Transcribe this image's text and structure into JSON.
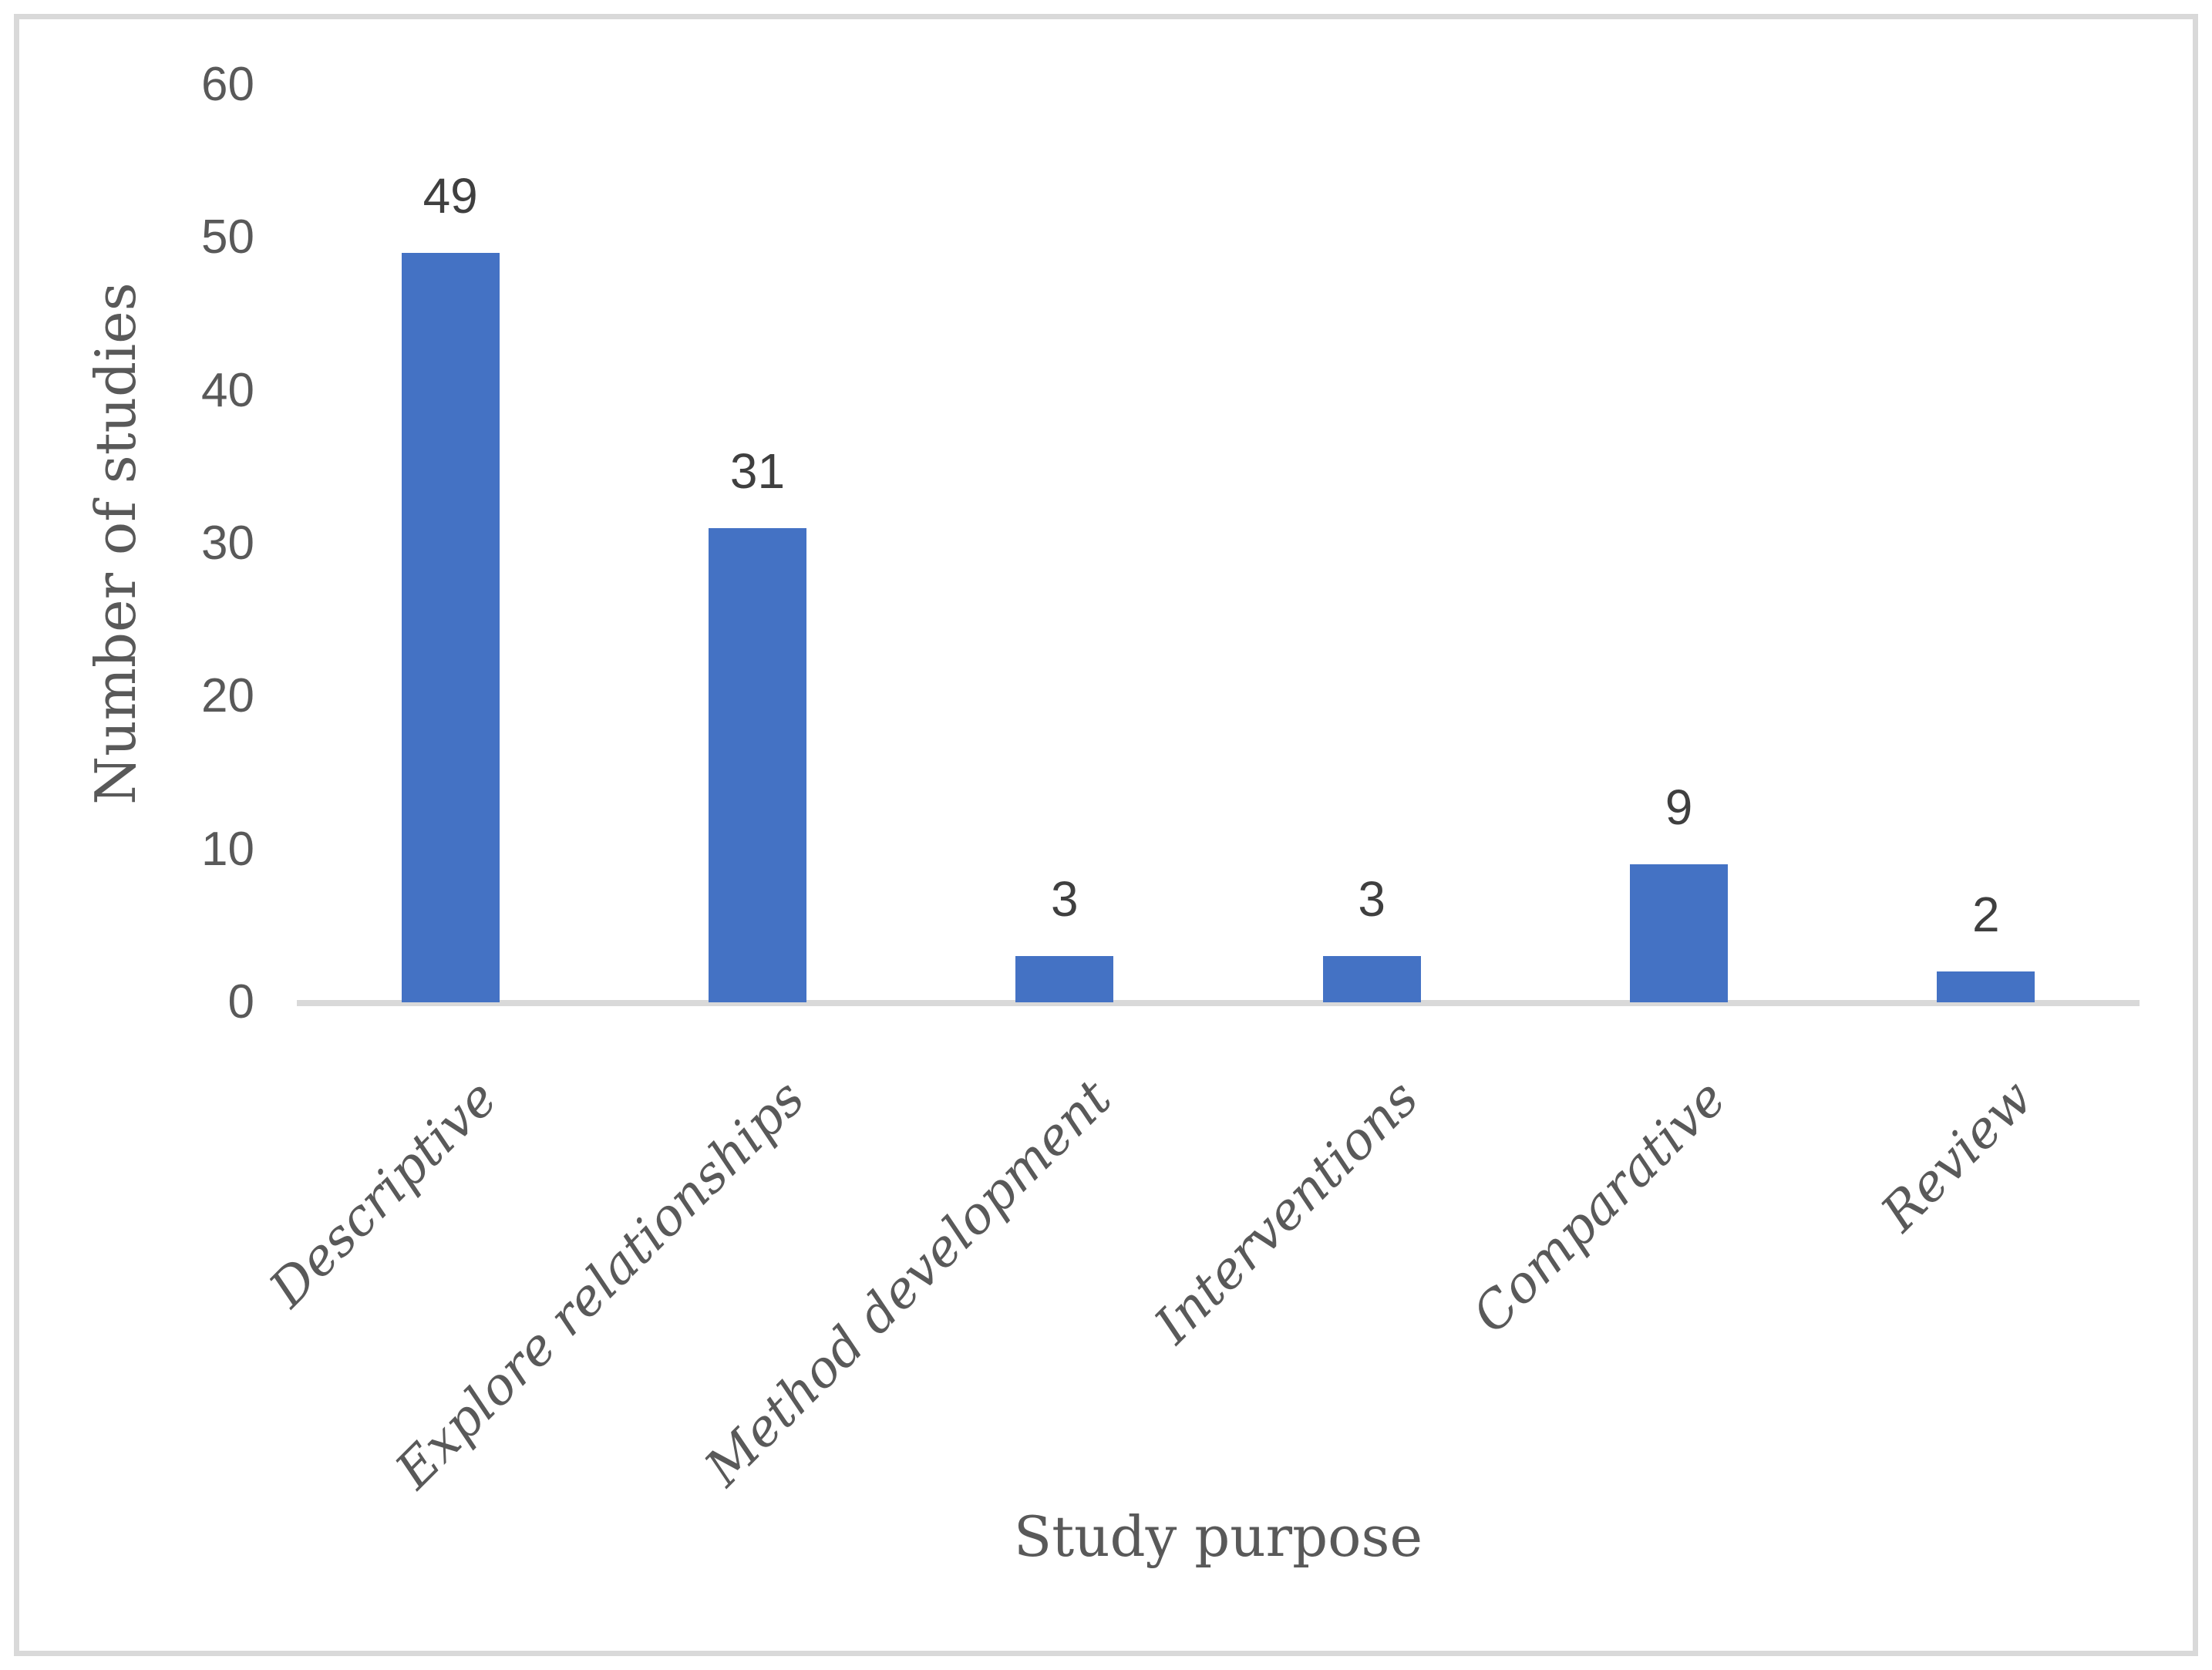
{
  "chart_data": {
    "type": "bar",
    "categories": [
      "Descriptive",
      "Explore relationships",
      "Method development",
      "Interventions",
      "Comparative",
      "Review"
    ],
    "values": [
      49,
      31,
      3,
      3,
      9,
      2
    ],
    "title": "",
    "xlabel": "Study purpose",
    "ylabel": "Number of studies",
    "yticks": [
      0,
      10,
      20,
      30,
      40,
      50,
      60
    ],
    "ylim": [
      0,
      60
    ],
    "grid": false,
    "legend": false,
    "bar_color": "#4472C4"
  },
  "colors": {
    "bar": "#4472C4",
    "axis_line": "#D9D9D9",
    "frame_border": "#D9D9D9",
    "tick_label": "#595959",
    "data_label": "#3F3F3F",
    "axis_title": "#595959",
    "category_label": "#595959",
    "background": "#FFFFFF"
  }
}
